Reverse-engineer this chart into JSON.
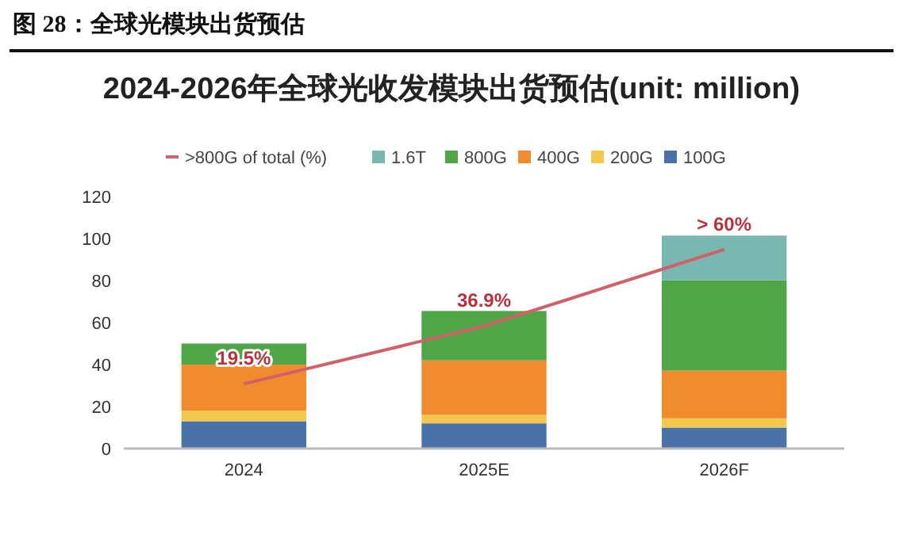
{
  "chart_data": {
    "type": "bar",
    "stacked": true,
    "title": "图 28：全球光模块出货预估",
    "subtitle": "2024-2026年全球光收发模块出货预估(unit: million)",
    "categories": [
      "2024",
      "2025E",
      "2026F"
    ],
    "series": [
      {
        "name": "100G",
        "color": "#4a72a8",
        "values": [
          13,
          12,
          10
        ]
      },
      {
        "name": "200G",
        "color": "#f2c94c",
        "values": [
          5,
          4,
          4.4
        ]
      },
      {
        "name": "400G",
        "color": "#f08c2e",
        "values": [
          22,
          26,
          22.7
        ]
      },
      {
        "name": "800G",
        "color": "#4ea646",
        "values": [
          10,
          23.5,
          43
        ]
      },
      {
        "name": "1.6T",
        "color": "#79b8b0",
        "values": [
          null,
          null,
          21.3
        ]
      },
      {
        "name": ">800G of total (%)",
        "type": "line",
        "axis": "y2",
        "color": "#d0606a",
        "values": [
          19.5,
          36.9,
          60
        ],
        "value_labels": [
          "19.5%",
          "36.9%",
          "> 60%"
        ]
      }
    ],
    "ylim": [
      0,
      120
    ],
    "yticks": [
      0,
      20,
      40,
      60,
      80,
      100,
      120
    ],
    "legend": "top",
    "grid": false
  }
}
